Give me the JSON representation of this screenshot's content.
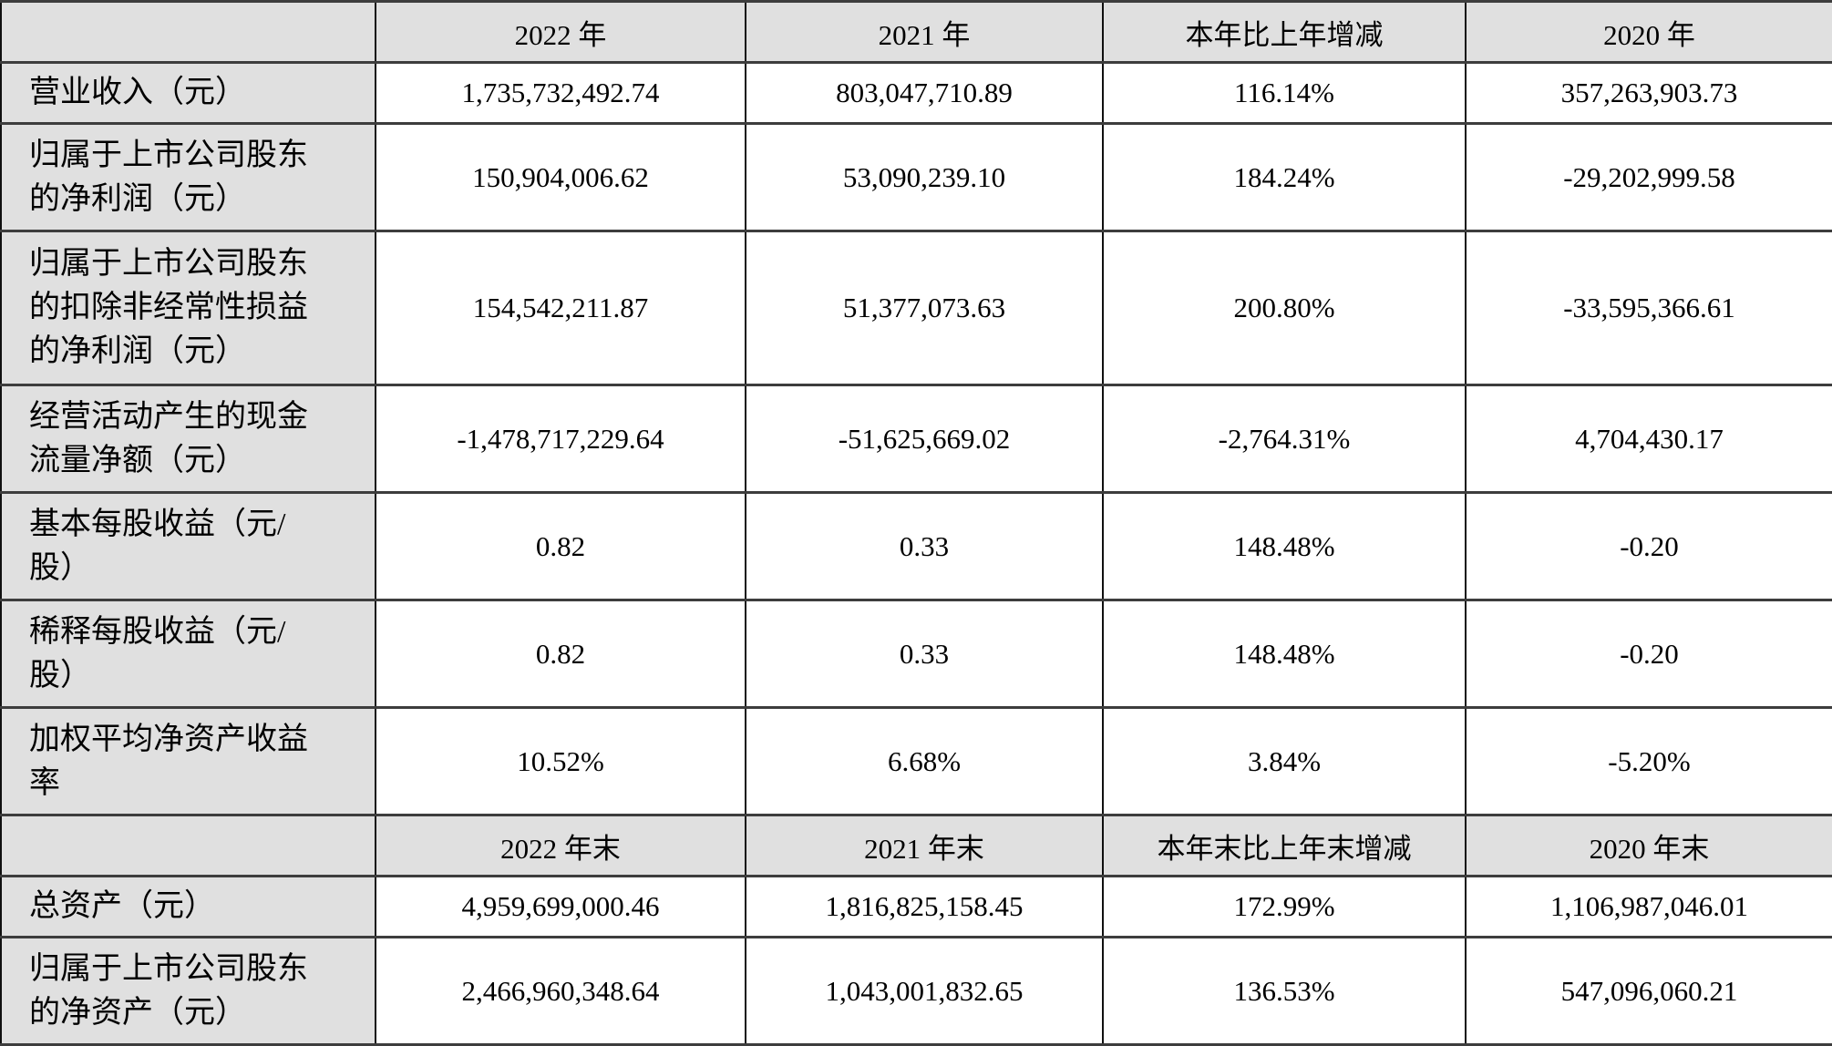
{
  "colors": {
    "header_background": "#e0e0e0",
    "label_background": "#e0e0e0",
    "cell_background": "#ffffff",
    "border": "#3d3d3d",
    "text": "#000000"
  },
  "period_table": {
    "headers": [
      "",
      "2022 年",
      "2021 年",
      "本年比上年增减",
      "2020 年"
    ],
    "rows": [
      {
        "label": "营业收入（元）",
        "values": [
          "1,735,732,492.74",
          "803,047,710.89",
          "116.14%",
          "357,263,903.73"
        ]
      },
      {
        "label": "归属于上市公司股东\n的净利润（元）",
        "values": [
          "150,904,006.62",
          "53,090,239.10",
          "184.24%",
          "-29,202,999.58"
        ]
      },
      {
        "label": "归属于上市公司股东\n的扣除非经常性损益\n的净利润（元）",
        "values": [
          "154,542,211.87",
          "51,377,073.63",
          "200.80%",
          "-33,595,366.61"
        ]
      },
      {
        "label": "经营活动产生的现金\n流量净额（元）",
        "values": [
          "-1,478,717,229.64",
          "-51,625,669.02",
          "-2,764.31%",
          "4,704,430.17"
        ]
      },
      {
        "label": "基本每股收益（元/\n股）",
        "values": [
          "0.82",
          "0.33",
          "148.48%",
          "-0.20"
        ]
      },
      {
        "label": "稀释每股收益（元/\n股）",
        "values": [
          "0.82",
          "0.33",
          "148.48%",
          "-0.20"
        ]
      },
      {
        "label": "加权平均净资产收益\n率",
        "values": [
          "10.52%",
          "6.68%",
          "3.84%",
          "-5.20%"
        ]
      }
    ]
  },
  "yearend_table": {
    "headers": [
      "",
      "2022 年末",
      "2021 年末",
      "本年末比上年末增减",
      "2020 年末"
    ],
    "rows": [
      {
        "label": "总资产（元）",
        "values": [
          "4,959,699,000.46",
          "1,816,825,158.45",
          "172.99%",
          "1,106,987,046.01"
        ]
      },
      {
        "label": "归属于上市公司股东\n的净资产（元）",
        "values": [
          "2,466,960,348.64",
          "1,043,001,832.65",
          "136.53%",
          "547,096,060.21"
        ]
      }
    ]
  }
}
